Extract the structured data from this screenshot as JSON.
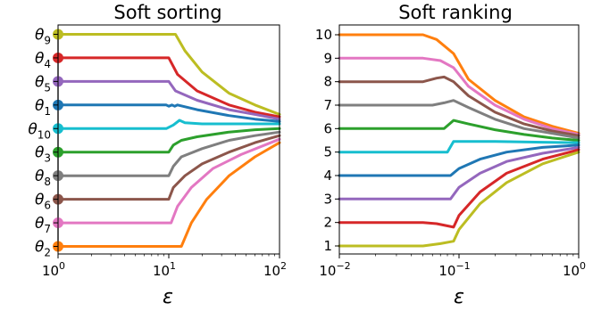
{
  "chart_data": [
    {
      "type": "line",
      "title": "Soft sorting",
      "xlabel": "ε",
      "ylabel": "",
      "xscale": "log",
      "xlim": [
        1,
        100
      ],
      "x_ticks": [
        {
          "value": 1,
          "base": "10",
          "exp": "0"
        },
        {
          "value": 10,
          "base": "10",
          "exp": "1"
        },
        {
          "value": 100,
          "base": "10",
          "exp": "2"
        }
      ],
      "y_tick_labels": [
        {
          "sym": "θ",
          "sub": "9",
          "value": 9
        },
        {
          "sym": "θ",
          "sub": "4",
          "value": 8
        },
        {
          "sym": "θ",
          "sub": "5",
          "value": 7
        },
        {
          "sym": "θ",
          "sub": "1",
          "value": 6
        },
        {
          "sym": "θ",
          "sub": "10",
          "value": 5
        },
        {
          "sym": "θ",
          "sub": "3",
          "value": 4
        },
        {
          "sym": "θ",
          "sub": "8",
          "value": 3
        },
        {
          "sym": "θ",
          "sub": "6",
          "value": 2
        },
        {
          "sym": "θ",
          "sub": "7",
          "value": 1
        },
        {
          "sym": "θ",
          "sub": "2",
          "value": 0
        }
      ],
      "series": [
        {
          "color": "#bcbd22",
          "values": [
            [
              1,
              9.0
            ],
            [
              11.5,
              9.0
            ],
            [
              14,
              8.3
            ],
            [
              20,
              7.4
            ],
            [
              35,
              6.5
            ],
            [
              60,
              6.0
            ],
            [
              100,
              5.6
            ]
          ]
        },
        {
          "color": "#d62728",
          "values": [
            [
              1,
              8.0
            ],
            [
              10,
              8.0
            ],
            [
              12,
              7.3
            ],
            [
              18,
              6.6
            ],
            [
              35,
              6.0
            ],
            [
              60,
              5.7
            ],
            [
              100,
              5.5
            ]
          ]
        },
        {
          "color": "#9467bd",
          "values": [
            [
              1,
              7.0
            ],
            [
              10,
              7.0
            ],
            [
              11.5,
              6.6
            ],
            [
              18,
              6.2
            ],
            [
              35,
              5.8
            ],
            [
              60,
              5.6
            ],
            [
              100,
              5.4
            ]
          ]
        },
        {
          "color": "#1f77b4",
          "values": [
            [
              1,
              6.0
            ],
            [
              9.5,
              6.0
            ],
            [
              10,
              5.95
            ],
            [
              10.7,
              6.0
            ],
            [
              11.3,
              5.95
            ],
            [
              12,
              6.0
            ],
            [
              18,
              5.8
            ],
            [
              35,
              5.55
            ],
            [
              60,
              5.4
            ],
            [
              100,
              5.3
            ]
          ]
        },
        {
          "color": "#17becf",
          "values": [
            [
              1,
              5.0
            ],
            [
              9.5,
              5.0
            ],
            [
              11,
              5.15
            ],
            [
              12.5,
              5.35
            ],
            [
              14,
              5.25
            ],
            [
              20,
              5.2
            ],
            [
              35,
              5.2
            ],
            [
              60,
              5.2
            ],
            [
              100,
              5.2
            ]
          ]
        },
        {
          "color": "#2ca02c",
          "values": [
            [
              1,
              4.0
            ],
            [
              10,
              4.0
            ],
            [
              11,
              4.3
            ],
            [
              13,
              4.5
            ],
            [
              18,
              4.65
            ],
            [
              35,
              4.85
            ],
            [
              60,
              4.95
            ],
            [
              100,
              5.0
            ]
          ]
        },
        {
          "color": "#7f7f7f",
          "values": [
            [
              1,
              3.0
            ],
            [
              10,
              3.0
            ],
            [
              11,
              3.4
            ],
            [
              13,
              3.8
            ],
            [
              20,
              4.15
            ],
            [
              35,
              4.5
            ],
            [
              60,
              4.7
            ],
            [
              100,
              4.85
            ]
          ]
        },
        {
          "color": "#8c564b",
          "values": [
            [
              1,
              2.0
            ],
            [
              10,
              2.0
            ],
            [
              11,
              2.5
            ],
            [
              14,
              3.0
            ],
            [
              20,
              3.5
            ],
            [
              35,
              4.0
            ],
            [
              60,
              4.4
            ],
            [
              100,
              4.7
            ]
          ]
        },
        {
          "color": "#e377c2",
          "values": [
            [
              1,
              1.0
            ],
            [
              10.5,
              1.0
            ],
            [
              12,
              1.7
            ],
            [
              16,
              2.5
            ],
            [
              25,
              3.3
            ],
            [
              45,
              3.9
            ],
            [
              100,
              4.55
            ]
          ]
        },
        {
          "color": "#ff7f0e",
          "values": [
            [
              1,
              0.0
            ],
            [
              13,
              0.0
            ],
            [
              16,
              1.0
            ],
            [
              22,
              2.0
            ],
            [
              35,
              3.0
            ],
            [
              60,
              3.8
            ],
            [
              100,
              4.4
            ]
          ]
        }
      ]
    },
    {
      "type": "line",
      "title": "Soft ranking",
      "xlabel": "ε",
      "ylabel": "",
      "xscale": "log",
      "xlim": [
        0.01,
        1
      ],
      "ylim": [
        1,
        10
      ],
      "x_ticks": [
        {
          "value": 0.01,
          "base": "10",
          "exp": "−2"
        },
        {
          "value": 0.1,
          "base": "10",
          "exp": "−1"
        },
        {
          "value": 1,
          "base": "10",
          "exp": "0"
        }
      ],
      "y_ticks": [
        1,
        2,
        3,
        4,
        5,
        6,
        7,
        8,
        9,
        10
      ],
      "series": [
        {
          "color": "#ff7f0e",
          "values": [
            [
              0.01,
              10.0
            ],
            [
              0.05,
              10.0
            ],
            [
              0.065,
              9.8
            ],
            [
              0.09,
              9.2
            ],
            [
              0.12,
              8.1
            ],
            [
              0.2,
              7.2
            ],
            [
              0.35,
              6.5
            ],
            [
              0.6,
              6.1
            ],
            [
              1,
              5.8
            ]
          ]
        },
        {
          "color": "#e377c2",
          "values": [
            [
              0.01,
              9.0
            ],
            [
              0.05,
              9.0
            ],
            [
              0.07,
              8.9
            ],
            [
              0.09,
              8.6
            ],
            [
              0.12,
              7.8
            ],
            [
              0.2,
              7.0
            ],
            [
              0.35,
              6.4
            ],
            [
              0.6,
              6.0
            ],
            [
              1,
              5.75
            ]
          ]
        },
        {
          "color": "#8c564b",
          "values": [
            [
              0.01,
              8.0
            ],
            [
              0.05,
              8.0
            ],
            [
              0.065,
              8.15
            ],
            [
              0.075,
              8.2
            ],
            [
              0.09,
              8.0
            ],
            [
              0.12,
              7.4
            ],
            [
              0.2,
              6.7
            ],
            [
              0.35,
              6.2
            ],
            [
              0.6,
              5.9
            ],
            [
              1,
              5.7
            ]
          ]
        },
        {
          "color": "#7f7f7f",
          "values": [
            [
              0.01,
              7.0
            ],
            [
              0.06,
              7.0
            ],
            [
              0.075,
              7.1
            ],
            [
              0.09,
              7.2
            ],
            [
              0.12,
              6.9
            ],
            [
              0.2,
              6.4
            ],
            [
              0.35,
              6.0
            ],
            [
              0.6,
              5.8
            ],
            [
              1,
              5.6
            ]
          ]
        },
        {
          "color": "#2ca02c",
          "values": [
            [
              0.01,
              6.0
            ],
            [
              0.075,
              6.0
            ],
            [
              0.09,
              6.35
            ],
            [
              0.12,
              6.2
            ],
            [
              0.2,
              5.95
            ],
            [
              0.35,
              5.75
            ],
            [
              0.6,
              5.6
            ],
            [
              1,
              5.5
            ]
          ]
        },
        {
          "color": "#17becf",
          "values": [
            [
              0.01,
              5.0
            ],
            [
              0.08,
              5.0
            ],
            [
              0.09,
              5.45
            ],
            [
              0.2,
              5.45
            ],
            [
              0.5,
              5.42
            ],
            [
              1,
              5.4
            ]
          ]
        },
        {
          "color": "#1f77b4",
          "values": [
            [
              0.01,
              4.0
            ],
            [
              0.085,
              4.0
            ],
            [
              0.1,
              4.3
            ],
            [
              0.15,
              4.7
            ],
            [
              0.25,
              5.0
            ],
            [
              0.5,
              5.2
            ],
            [
              1,
              5.3
            ]
          ]
        },
        {
          "color": "#9467bd",
          "values": [
            [
              0.01,
              3.0
            ],
            [
              0.085,
              3.0
            ],
            [
              0.1,
              3.5
            ],
            [
              0.15,
              4.1
            ],
            [
              0.25,
              4.6
            ],
            [
              0.5,
              4.95
            ],
            [
              1,
              5.2
            ]
          ]
        },
        {
          "color": "#d62728",
          "values": [
            [
              0.01,
              2.0
            ],
            [
              0.05,
              2.0
            ],
            [
              0.065,
              1.95
            ],
            [
              0.09,
              1.8
            ],
            [
              0.1,
              2.3
            ],
            [
              0.15,
              3.3
            ],
            [
              0.25,
              4.1
            ],
            [
              0.5,
              4.7
            ],
            [
              1,
              5.1
            ]
          ]
        },
        {
          "color": "#bcbd22",
          "values": [
            [
              0.01,
              1.0
            ],
            [
              0.05,
              1.0
            ],
            [
              0.07,
              1.1
            ],
            [
              0.09,
              1.2
            ],
            [
              0.1,
              1.7
            ],
            [
              0.15,
              2.8
            ],
            [
              0.25,
              3.7
            ],
            [
              0.5,
              4.5
            ],
            [
              1,
              5.0
            ]
          ]
        }
      ]
    }
  ]
}
